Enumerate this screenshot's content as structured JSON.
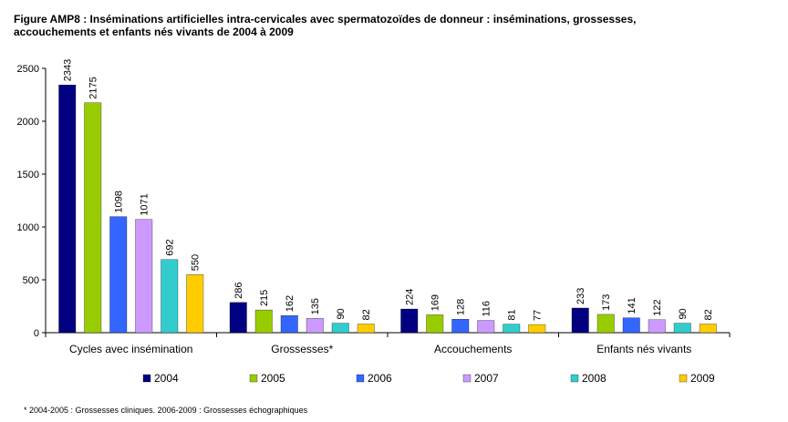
{
  "figure": {
    "title_line1": "Figure AMP8 : Inséminations artificielles intra-cervicales avec spermatozoïdes de donneur : inséminations, grossesses,",
    "title_line2": "accouchements et enfants nés vivants de 2004 à 2009",
    "footnote": "* 2004-2005 : Grossesses cliniques. 2006-2009 : Grossesses échographiques"
  },
  "chart_data": {
    "type": "bar",
    "categories": [
      "Cycles avec insémination",
      "Grossesses*",
      "Accouchements",
      "Enfants nés vivants"
    ],
    "series": [
      {
        "name": "2004",
        "color": "#000080",
        "values": [
          2343,
          286,
          224,
          233
        ]
      },
      {
        "name": "2005",
        "color": "#99CC00",
        "values": [
          2175,
          215,
          169,
          173
        ]
      },
      {
        "name": "2006",
        "color": "#3366FF",
        "values": [
          1098,
          162,
          128,
          141
        ]
      },
      {
        "name": "2007",
        "color": "#CC99FF",
        "values": [
          1071,
          135,
          116,
          122
        ]
      },
      {
        "name": "2008",
        "color": "#33CCCC",
        "values": [
          692,
          90,
          81,
          90
        ]
      },
      {
        "name": "2009",
        "color": "#FFCC00",
        "values": [
          550,
          82,
          77,
          82
        ]
      }
    ],
    "yticks": [
      "0",
      "500",
      "1000",
      "1500",
      "2000",
      "2500"
    ],
    "ylim": [
      0,
      2500
    ],
    "grid": false,
    "legend_position": "bottom",
    "data_labels": true
  }
}
